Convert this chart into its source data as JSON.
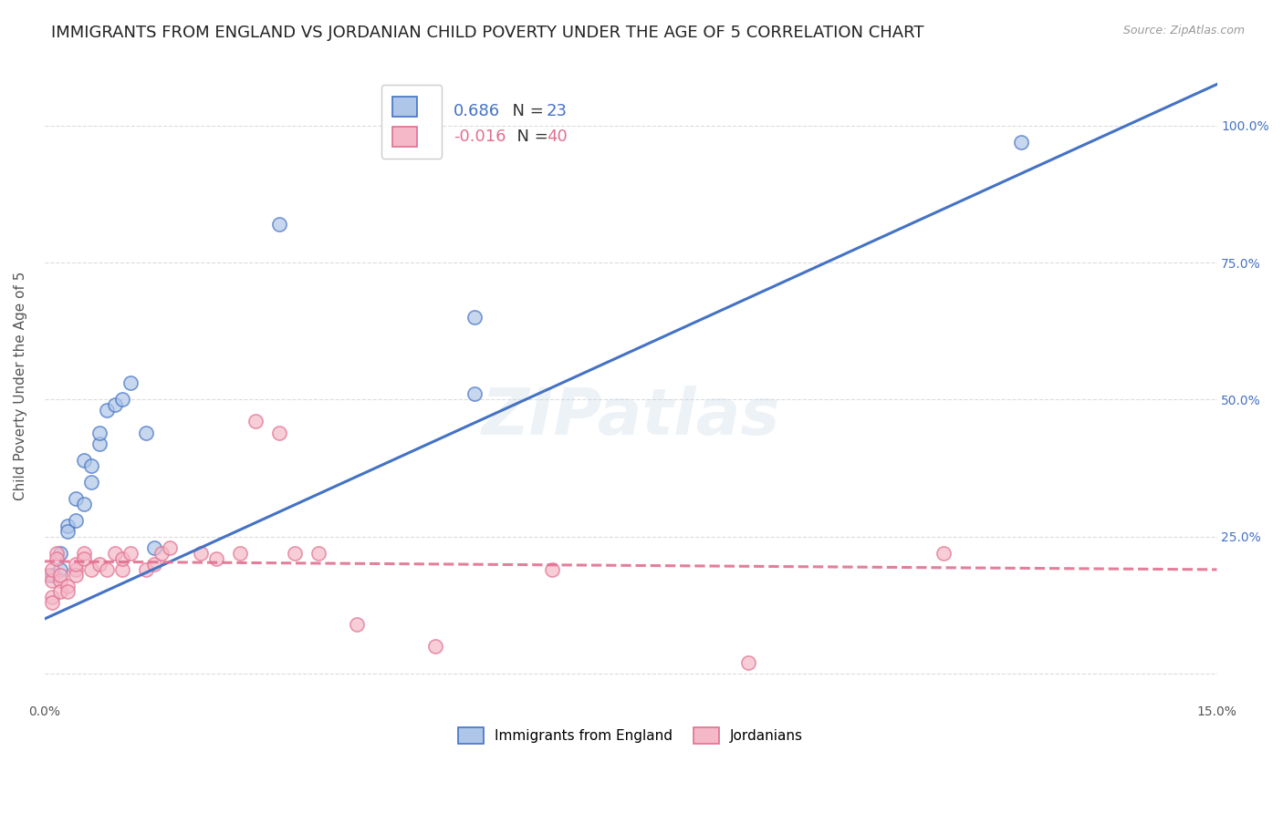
{
  "title": "IMMIGRANTS FROM ENGLAND VS JORDANIAN CHILD POVERTY UNDER THE AGE OF 5 CORRELATION CHART",
  "source": "Source: ZipAtlas.com",
  "ylabel": "Child Poverty Under the Age of 5",
  "xlim": [
    0.0,
    0.15
  ],
  "ylim": [
    -0.05,
    1.1
  ],
  "watermark": "ZIPatlas",
  "england_scatter_x": [
    0.001,
    0.002,
    0.002,
    0.003,
    0.003,
    0.004,
    0.004,
    0.005,
    0.005,
    0.006,
    0.006,
    0.007,
    0.007,
    0.008,
    0.009,
    0.01,
    0.011,
    0.013,
    0.014,
    0.03,
    0.055,
    0.055,
    0.125
  ],
  "england_scatter_y": [
    0.18,
    0.22,
    0.19,
    0.27,
    0.26,
    0.28,
    0.32,
    0.31,
    0.39,
    0.35,
    0.38,
    0.42,
    0.44,
    0.48,
    0.49,
    0.5,
    0.53,
    0.44,
    0.23,
    0.82,
    0.65,
    0.51,
    0.97
  ],
  "jordan_scatter_x": [
    0.0005,
    0.001,
    0.001,
    0.001,
    0.001,
    0.0015,
    0.0015,
    0.002,
    0.002,
    0.002,
    0.003,
    0.003,
    0.004,
    0.004,
    0.004,
    0.005,
    0.005,
    0.006,
    0.007,
    0.008,
    0.009,
    0.01,
    0.01,
    0.011,
    0.013,
    0.014,
    0.015,
    0.016,
    0.02,
    0.022,
    0.025,
    0.027,
    0.03,
    0.032,
    0.035,
    0.04,
    0.05,
    0.065,
    0.09,
    0.115
  ],
  "jordan_scatter_y": [
    0.18,
    0.17,
    0.19,
    0.14,
    0.13,
    0.22,
    0.21,
    0.17,
    0.18,
    0.15,
    0.16,
    0.15,
    0.19,
    0.18,
    0.2,
    0.22,
    0.21,
    0.19,
    0.2,
    0.19,
    0.22,
    0.19,
    0.21,
    0.22,
    0.19,
    0.2,
    0.22,
    0.23,
    0.22,
    0.21,
    0.22,
    0.46,
    0.44,
    0.22,
    0.22,
    0.09,
    0.05,
    0.19,
    0.02,
    0.22
  ],
  "england_line_y_intercept": 0.1,
  "england_line_slope": 6.5,
  "jordan_line_y_intercept": 0.205,
  "jordan_line_slope": -0.1,
  "england_color": "#4472c4",
  "england_scatter_color": "#aec6e8",
  "jordan_color": "#e07090",
  "jordan_scatter_color": "#f4b8c8",
  "background_color": "#ffffff",
  "grid_color": "#cccccc",
  "title_fontsize": 13,
  "axis_label_fontsize": 11,
  "tick_fontsize": 10,
  "scatter_size": 120,
  "scatter_alpha": 0.7,
  "line_width": 2.2,
  "r_england": "0.686",
  "n_england": "23",
  "r_jordan": "-0.016",
  "n_jordan": "40"
}
